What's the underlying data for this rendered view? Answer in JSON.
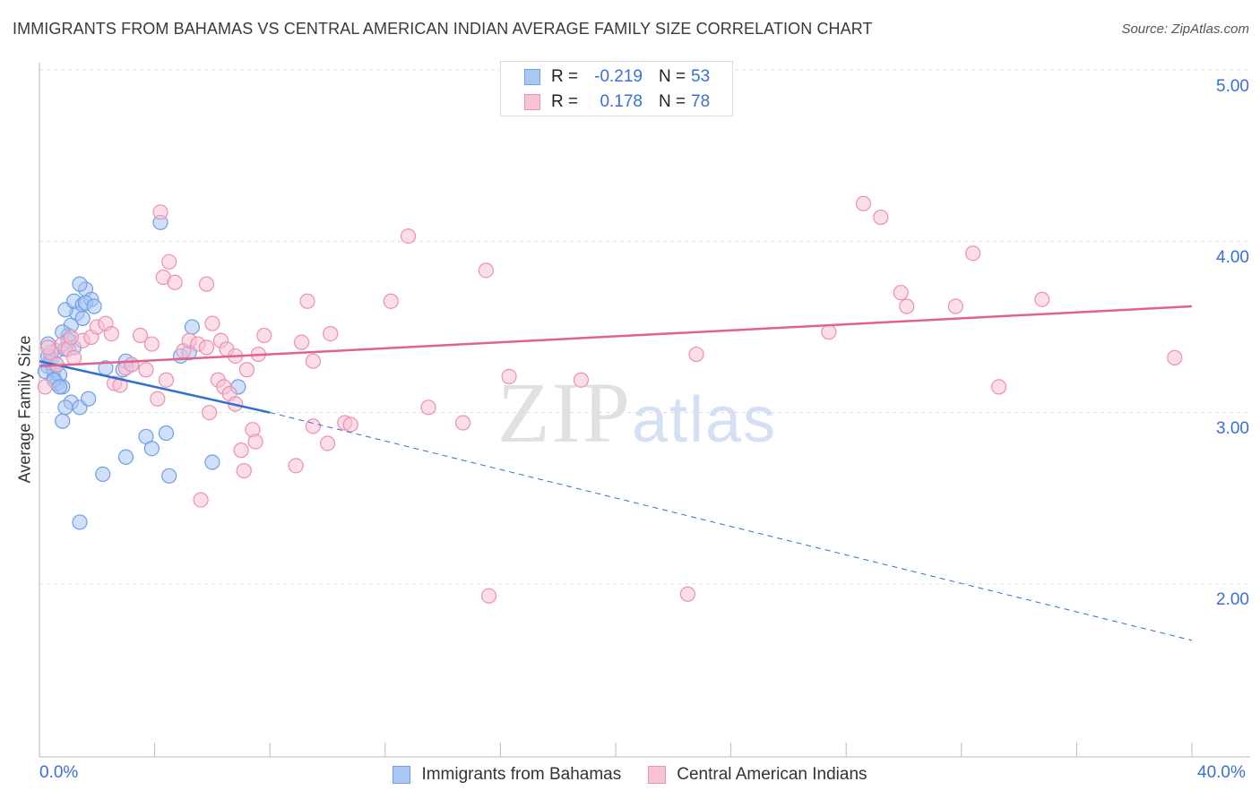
{
  "header": {
    "title": "IMMIGRANTS FROM BAHAMAS VS CENTRAL AMERICAN INDIAN AVERAGE FAMILY SIZE CORRELATION CHART",
    "source": "Source: ZipAtlas.com"
  },
  "watermark": {
    "part1": "ZIP",
    "part2": "atlas"
  },
  "legend": {
    "rows": [
      {
        "r_label": "R =",
        "r_value": "-0.219",
        "n_label": "N =",
        "n_value": "53",
        "color": "#7aa6e8"
      },
      {
        "r_label": "R =",
        "r_value": "0.178",
        "n_label": "N =",
        "n_value": "78",
        "color": "#f09ab6"
      }
    ]
  },
  "axis_labels": {
    "y_title": "Average Family Size",
    "x_min": "0.0%",
    "x_max": "40.0%",
    "y_ticks": [
      "5.00",
      "4.00",
      "3.00",
      "2.00"
    ]
  },
  "bottom_legend": {
    "series1": "Immigrants from Bahamas",
    "series2": "Central American Indians"
  },
  "colors": {
    "blue_fill": "#a9c7f3",
    "blue_stroke": "#6f9ee6",
    "blue_line": "#2f6fd6",
    "pink_fill": "#f8c3d3",
    "pink_stroke": "#ee90ae",
    "pink_line": "#e2628f",
    "grid": "#dedede",
    "tick_text": "#3a6fd8"
  },
  "chart_data": {
    "type": "scatter",
    "title": "IMMIGRANTS FROM BAHAMAS VS CENTRAL AMERICAN INDIAN AVERAGE FAMILY SIZE CORRELATION CHART",
    "xlabel": "",
    "ylabel": "Average Family Size",
    "xlim": [
      0,
      40
    ],
    "ylim": [
      1.0,
      5.1
    ],
    "y_ticks": [
      2.0,
      3.0,
      4.0,
      5.0
    ],
    "x_unit": "%",
    "grid": true,
    "legend_position": "top-center",
    "series": [
      {
        "name": "Immigrants from Bahamas",
        "color": "#7aa6e8",
        "r": -0.219,
        "n": 53,
        "trend": {
          "x_start": 0,
          "y_start": 3.3,
          "x_solid_end": 8,
          "y_solid_end": 3.0,
          "x_end": 40,
          "y_end": 1.67
        },
        "points": [
          [
            0.3,
            3.27
          ],
          [
            0.5,
            3.2
          ],
          [
            0.4,
            3.32
          ],
          [
            0.6,
            3.17
          ],
          [
            0.8,
            3.15
          ],
          [
            0.3,
            3.4
          ],
          [
            0.5,
            3.25
          ],
          [
            0.7,
            3.22
          ],
          [
            1.0,
            3.45
          ],
          [
            1.1,
            3.51
          ],
          [
            1.3,
            3.58
          ],
          [
            0.9,
            3.6
          ],
          [
            1.2,
            3.65
          ],
          [
            1.5,
            3.63
          ],
          [
            1.6,
            3.72
          ],
          [
            1.8,
            3.66
          ],
          [
            1.4,
            3.75
          ],
          [
            1.6,
            3.64
          ],
          [
            0.8,
            3.47
          ],
          [
            1.0,
            3.42
          ],
          [
            1.2,
            3.38
          ],
          [
            0.6,
            3.36
          ],
          [
            0.4,
            3.29
          ],
          [
            0.2,
            3.24
          ],
          [
            0.5,
            3.19
          ],
          [
            0.7,
            3.15
          ],
          [
            1.1,
            3.06
          ],
          [
            1.4,
            3.03
          ],
          [
            1.7,
            3.08
          ],
          [
            0.8,
            2.95
          ],
          [
            0.9,
            3.03
          ],
          [
            0.6,
            3.28
          ],
          [
            0.3,
            3.33
          ],
          [
            0.9,
            3.37
          ],
          [
            1.5,
            3.55
          ],
          [
            1.9,
            3.62
          ],
          [
            2.3,
            3.26
          ],
          [
            3.2,
            3.28
          ],
          [
            3.0,
            3.3
          ],
          [
            2.9,
            3.25
          ],
          [
            4.9,
            3.33
          ],
          [
            5.2,
            3.35
          ],
          [
            5.3,
            3.5
          ],
          [
            4.2,
            4.11
          ],
          [
            3.7,
            2.86
          ],
          [
            3.9,
            2.79
          ],
          [
            4.4,
            2.88
          ],
          [
            4.5,
            2.63
          ],
          [
            3.0,
            2.74
          ],
          [
            2.2,
            2.64
          ],
          [
            6.0,
            2.71
          ],
          [
            6.9,
            3.15
          ],
          [
            1.4,
            2.36
          ]
        ]
      },
      {
        "name": "Central American Indians",
        "color": "#f09ab6",
        "r": 0.178,
        "n": 78,
        "trend": {
          "x_start": 0,
          "y_start": 3.27,
          "x_end": 40,
          "y_end": 3.62
        },
        "points": [
          [
            0.2,
            3.15
          ],
          [
            0.4,
            3.35
          ],
          [
            0.6,
            3.28
          ],
          [
            0.8,
            3.4
          ],
          [
            1.0,
            3.37
          ],
          [
            1.2,
            3.32
          ],
          [
            1.5,
            3.42
          ],
          [
            1.8,
            3.44
          ],
          [
            2.0,
            3.5
          ],
          [
            2.3,
            3.52
          ],
          [
            2.6,
            3.17
          ],
          [
            2.8,
            3.16
          ],
          [
            3.0,
            3.26
          ],
          [
            3.2,
            3.28
          ],
          [
            3.5,
            3.45
          ],
          [
            3.7,
            3.25
          ],
          [
            3.9,
            3.4
          ],
          [
            4.1,
            3.08
          ],
          [
            4.3,
            3.79
          ],
          [
            4.5,
            3.88
          ],
          [
            4.7,
            3.76
          ],
          [
            4.2,
            4.17
          ],
          [
            4.4,
            3.19
          ],
          [
            5.0,
            3.36
          ],
          [
            5.2,
            3.42
          ],
          [
            5.5,
            3.4
          ],
          [
            5.8,
            3.75
          ],
          [
            6.0,
            3.52
          ],
          [
            6.2,
            3.19
          ],
          [
            6.4,
            3.15
          ],
          [
            6.6,
            3.11
          ],
          [
            6.8,
            3.05
          ],
          [
            5.9,
            3.0
          ],
          [
            6.3,
            3.42
          ],
          [
            6.5,
            3.37
          ],
          [
            6.8,
            3.33
          ],
          [
            7.2,
            3.25
          ],
          [
            7.6,
            3.34
          ],
          [
            7.8,
            3.45
          ],
          [
            7.4,
            2.9
          ],
          [
            7.5,
            2.83
          ],
          [
            7.0,
            2.78
          ],
          [
            7.1,
            2.66
          ],
          [
            8.9,
            2.69
          ],
          [
            9.3,
            3.65
          ],
          [
            9.5,
            3.3
          ],
          [
            9.1,
            3.41
          ],
          [
            10.1,
            3.46
          ],
          [
            9.5,
            2.92
          ],
          [
            10.6,
            2.94
          ],
          [
            10.8,
            2.93
          ],
          [
            10.0,
            2.82
          ],
          [
            12.2,
            3.65
          ],
          [
            12.8,
            4.03
          ],
          [
            13.5,
            3.03
          ],
          [
            14.7,
            2.94
          ],
          [
            15.5,
            3.83
          ],
          [
            16.3,
            3.21
          ],
          [
            18.8,
            3.19
          ],
          [
            19.6,
            4.91
          ],
          [
            22.8,
            3.34
          ],
          [
            22.5,
            1.94
          ],
          [
            15.6,
            1.93
          ],
          [
            27.4,
            3.47
          ],
          [
            28.6,
            4.22
          ],
          [
            29.2,
            4.14
          ],
          [
            29.9,
            3.7
          ],
          [
            30.1,
            3.62
          ],
          [
            31.8,
            3.62
          ],
          [
            32.4,
            3.93
          ],
          [
            33.3,
            3.15
          ],
          [
            34.8,
            3.66
          ],
          [
            39.4,
            3.32
          ],
          [
            5.6,
            2.49
          ],
          [
            5.8,
            3.38
          ],
          [
            1.1,
            3.44
          ],
          [
            0.3,
            3.38
          ],
          [
            2.5,
            3.46
          ]
        ]
      }
    ]
  }
}
